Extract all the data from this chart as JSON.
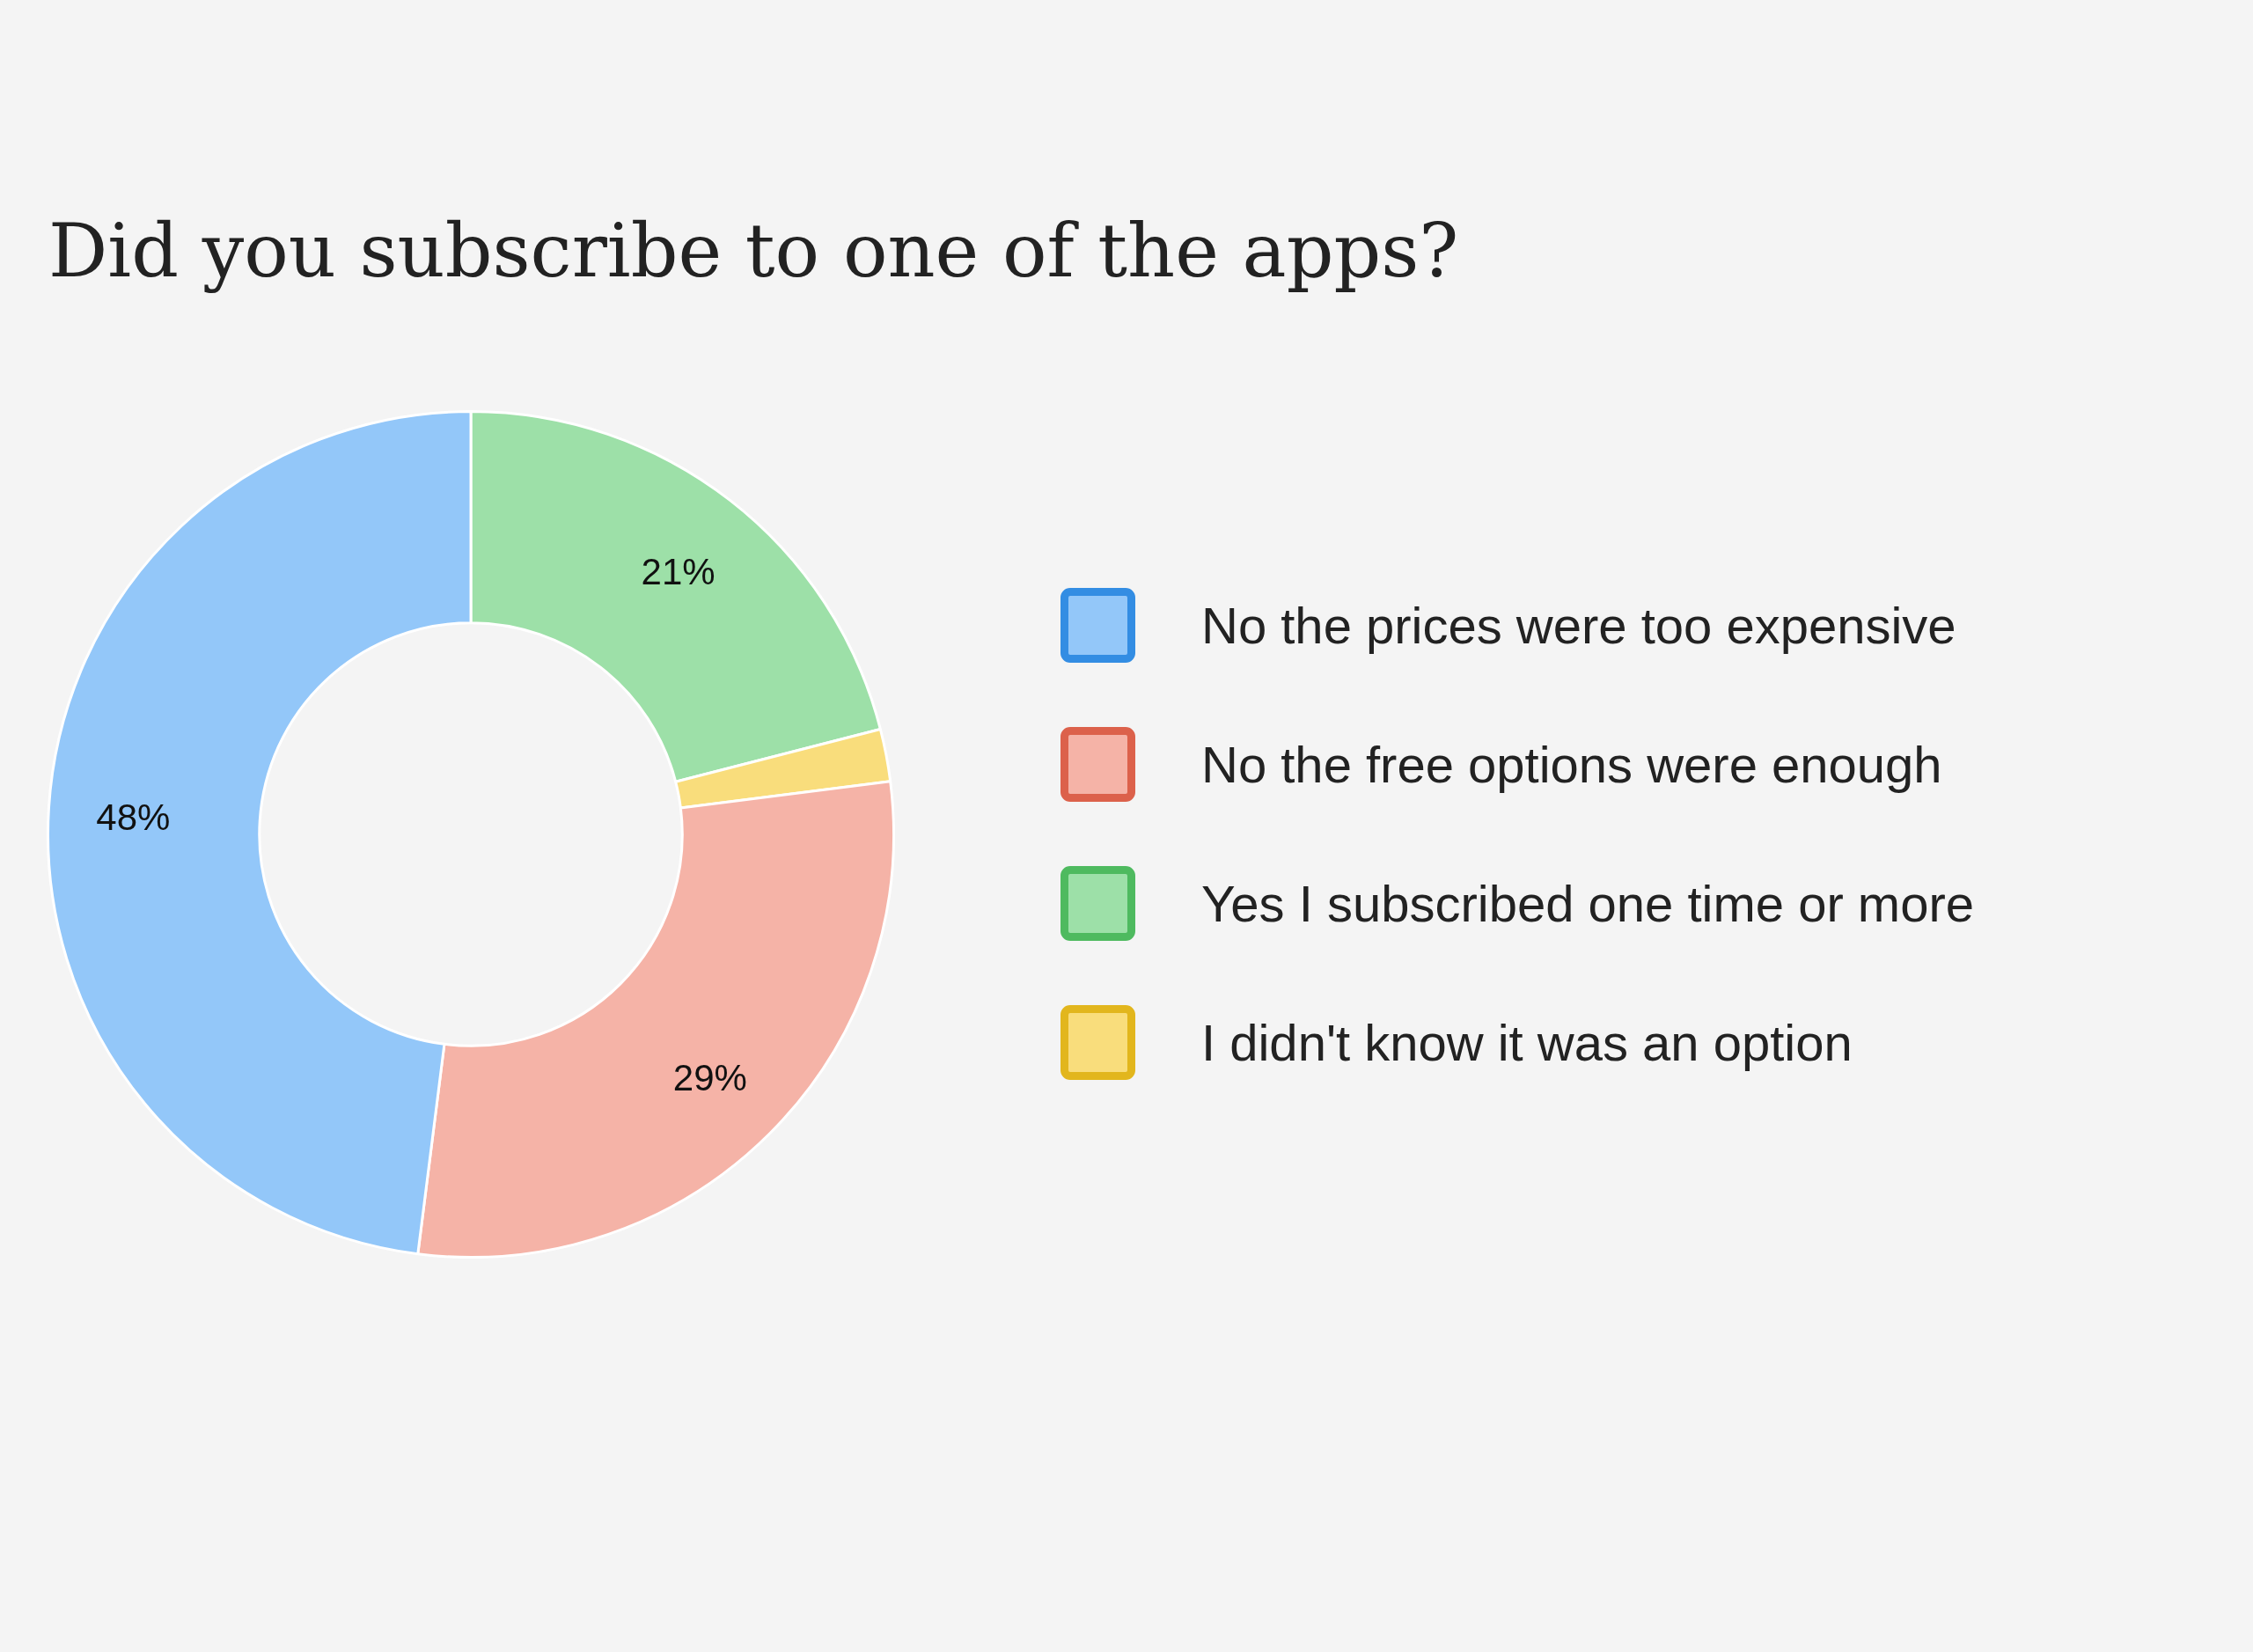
{
  "chart_data": {
    "type": "donut",
    "title": "Did you subscribe to one of the apps?",
    "categories": [
      "Yes I subscribed one time or more",
      "I didn't know it was an option",
      "No the free options were enough",
      "No the prices were too expensive"
    ],
    "values": [
      21,
      2,
      29,
      48
    ],
    "colors": [
      "#9de0a8",
      "#f9dd7c",
      "#f5b3a7",
      "#93c7f9"
    ],
    "value_labels": [
      "21%",
      null,
      "29%",
      "48%"
    ],
    "legend": "right"
  }
}
